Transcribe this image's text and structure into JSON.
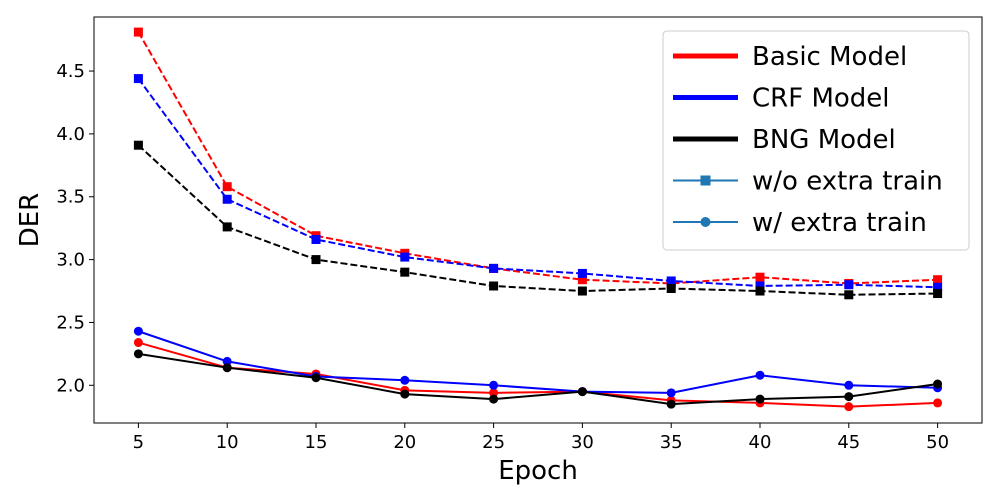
{
  "chart_data": {
    "type": "line",
    "title": "",
    "xlabel": "Epoch",
    "ylabel": "DER",
    "x": [
      5,
      10,
      15,
      20,
      25,
      30,
      35,
      40,
      45,
      50
    ],
    "xlim": [
      2.5,
      52.5
    ],
    "ylim": [
      1.7,
      4.93
    ],
    "xticks": [
      "5",
      "10",
      "15",
      "20",
      "25",
      "30",
      "35",
      "40",
      "45",
      "50"
    ],
    "yticks": [
      "2.0",
      "2.5",
      "3.0",
      "3.5",
      "4.0",
      "4.5"
    ],
    "grid": false,
    "legend_position": "top-right",
    "legend": [
      {
        "label": "Basic Model",
        "color": "#ff0000",
        "kind": "line"
      },
      {
        "label": "CRF Model",
        "color": "#0000ff",
        "kind": "line"
      },
      {
        "label": "BNG Model",
        "color": "#000000",
        "kind": "line"
      },
      {
        "label": "w/o extra train",
        "color": "#1f77b4",
        "kind": "square"
      },
      {
        "label": "w/ extra train",
        "color": "#1f77b4",
        "kind": "circle"
      }
    ],
    "series": [
      {
        "name": "Basic Model w/o extra train",
        "color": "#ff0000",
        "style": "dashed",
        "marker": "square",
        "values": [
          4.81,
          3.58,
          3.19,
          3.05,
          2.93,
          2.84,
          2.81,
          2.86,
          2.81,
          2.84
        ]
      },
      {
        "name": "CRF Model w/o extra train",
        "color": "#0000ff",
        "style": "dashed",
        "marker": "square",
        "values": [
          4.44,
          3.48,
          3.16,
          3.02,
          2.93,
          2.89,
          2.83,
          2.79,
          2.8,
          2.78
        ]
      },
      {
        "name": "BNG Model w/o extra train",
        "color": "#000000",
        "style": "dashed",
        "marker": "square",
        "values": [
          3.91,
          3.26,
          3.0,
          2.9,
          2.79,
          2.75,
          2.77,
          2.75,
          2.72,
          2.73
        ]
      },
      {
        "name": "Basic Model w/ extra train",
        "color": "#ff0000",
        "style": "solid",
        "marker": "circle",
        "values": [
          2.34,
          2.14,
          2.09,
          1.96,
          1.94,
          1.95,
          1.88,
          1.86,
          1.83,
          1.86
        ]
      },
      {
        "name": "CRF Model w/ extra train",
        "color": "#0000ff",
        "style": "solid",
        "marker": "circle",
        "values": [
          2.43,
          2.19,
          2.07,
          2.04,
          2.0,
          1.95,
          1.94,
          2.08,
          2.0,
          1.98
        ]
      },
      {
        "name": "BNG Model w/ extra train",
        "color": "#000000",
        "style": "solid",
        "marker": "circle",
        "values": [
          2.25,
          2.14,
          2.06,
          1.93,
          1.89,
          1.95,
          1.85,
          1.89,
          1.91,
          2.01
        ]
      }
    ]
  }
}
